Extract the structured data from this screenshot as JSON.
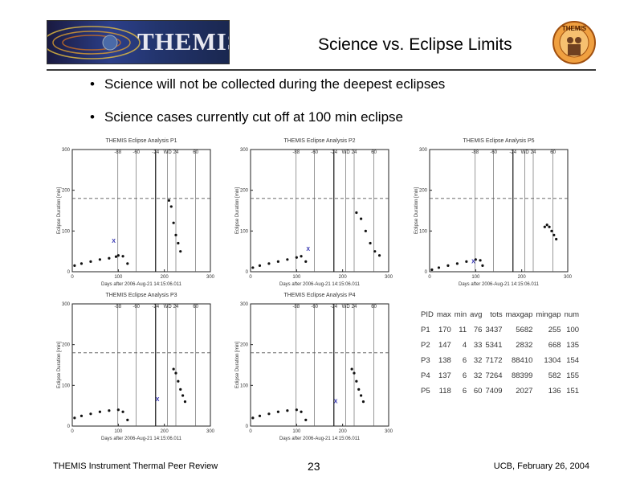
{
  "header": {
    "logo_text": "THEMIS",
    "title": "Science vs. Eclipse Limits",
    "emblem_text": "THEMIS"
  },
  "bullets": [
    "Science will not be collected during the deepest eclipses",
    "Science cases currently cut off at 100 min eclipse"
  ],
  "chart_data": [
    {
      "type": "scatter",
      "title": "THEMIS Eclipse Analysis P1",
      "ylabel": "Eclipse Duration [min]",
      "xlabel": "Days after 2006-Aug-21 14:15:06.011",
      "xlim": [
        0,
        300
      ],
      "ylim": [
        0,
        300
      ],
      "xticks": [
        0,
        100,
        200,
        300
      ],
      "yticks": [
        0,
        100,
        200,
        300
      ],
      "vlines": [
        99,
        139,
        181,
        207,
        225,
        268
      ],
      "vline_labels": [
        "-88",
        "-60",
        "-24",
        "WD",
        "24",
        "60"
      ],
      "threshold": 180,
      "x": [
        5,
        20,
        40,
        60,
        80,
        95,
        100,
        110,
        120,
        210,
        215,
        220,
        225,
        230,
        235
      ],
      "y": [
        15,
        20,
        25,
        30,
        33,
        37,
        40,
        38,
        20,
        175,
        160,
        120,
        90,
        70,
        50
      ],
      "markers": [
        {
          "x": 90,
          "y": 75,
          "label": "X"
        }
      ]
    },
    {
      "type": "scatter",
      "title": "THEMIS Eclipse Analysis P2",
      "ylabel": "Eclipse Duration [min]",
      "xlabel": "Days after 2006-Aug-21 14:15:06.011",
      "xlim": [
        0,
        300
      ],
      "ylim": [
        0,
        300
      ],
      "xticks": [
        0,
        100,
        200,
        300
      ],
      "yticks": [
        0,
        100,
        200,
        300
      ],
      "vlines": [
        99,
        139,
        181,
        207,
        225,
        268
      ],
      "vline_labels": [
        "-88",
        "-60",
        "-24",
        "WD",
        "24",
        "60"
      ],
      "threshold": 180,
      "x": [
        5,
        20,
        40,
        60,
        80,
        100,
        110,
        120,
        230,
        240,
        250,
        260,
        270,
        280
      ],
      "y": [
        10,
        15,
        20,
        25,
        30,
        35,
        38,
        25,
        145,
        130,
        100,
        70,
        50,
        40
      ],
      "markers": [
        {
          "x": 125,
          "y": 55,
          "label": "X"
        }
      ]
    },
    {
      "type": "scatter",
      "title": "THEMIS Eclipse Analysis P5",
      "ylabel": "Eclipse Duration [min]",
      "xlabel": "Days after 2006-Aug-21 14:15:06.011",
      "xlim": [
        0,
        300
      ],
      "ylim": [
        0,
        300
      ],
      "xticks": [
        0,
        100,
        200,
        300
      ],
      "yticks": [
        0,
        100,
        200,
        300
      ],
      "vlines": [
        99,
        139,
        181,
        207,
        225,
        268
      ],
      "vline_labels": [
        "-88",
        "-60",
        "-24",
        "WD",
        "24",
        "60"
      ],
      "threshold": 180,
      "x": [
        5,
        20,
        40,
        60,
        80,
        100,
        110,
        115,
        250,
        255,
        260,
        265,
        270,
        275
      ],
      "y": [
        5,
        10,
        15,
        20,
        25,
        30,
        28,
        15,
        110,
        115,
        110,
        100,
        90,
        80
      ],
      "markers": [
        {
          "x": 95,
          "y": 25,
          "label": "X"
        }
      ]
    },
    {
      "type": "scatter",
      "title": "THEMIS Eclipse Analysis P3",
      "ylabel": "Eclipse Duration [min]",
      "xlabel": "Days after 2006-Aug-21 14:15:06.011",
      "xlim": [
        0,
        300
      ],
      "ylim": [
        0,
        300
      ],
      "xticks": [
        0,
        100,
        200,
        300
      ],
      "yticks": [
        0,
        100,
        200,
        300
      ],
      "vlines": [
        99,
        139,
        181,
        207,
        225,
        268
      ],
      "vline_labels": [
        "-88",
        "-60",
        "-24",
        "WD",
        "24",
        "60"
      ],
      "threshold": 180,
      "x": [
        5,
        20,
        40,
        60,
        80,
        100,
        110,
        120,
        220,
        225,
        230,
        235,
        240,
        245
      ],
      "y": [
        20,
        25,
        30,
        35,
        38,
        40,
        35,
        15,
        140,
        130,
        110,
        90,
        75,
        60
      ],
      "markers": [
        {
          "x": 185,
          "y": 65,
          "label": "X"
        }
      ]
    },
    {
      "type": "scatter",
      "title": "THEMIS Eclipse Analysis P4",
      "ylabel": "Eclipse Duration [min]",
      "xlabel": "Days after 2006-Aug-21 14:15:06.011",
      "xlim": [
        0,
        300
      ],
      "ylim": [
        0,
        300
      ],
      "xticks": [
        0,
        100,
        200,
        300
      ],
      "yticks": [
        0,
        100,
        200,
        300
      ],
      "vlines": [
        99,
        139,
        181,
        207,
        225,
        268
      ],
      "vline_labels": [
        "-88",
        "-60",
        "-24",
        "WD",
        "24",
        "60"
      ],
      "threshold": 180,
      "x": [
        5,
        20,
        40,
        60,
        80,
        100,
        110,
        120,
        220,
        225,
        230,
        235,
        240,
        245
      ],
      "y": [
        20,
        25,
        30,
        35,
        38,
        40,
        35,
        15,
        140,
        130,
        110,
        90,
        75,
        60
      ],
      "markers": [
        {
          "x": 185,
          "y": 60,
          "label": "X"
        }
      ]
    }
  ],
  "stats": {
    "headers": [
      "PID",
      "max",
      "min",
      "avg",
      "tots",
      "maxgap",
      "mingap",
      "num"
    ],
    "rows": [
      [
        "P1",
        "170",
        "11",
        "76",
        "3437",
        "5682",
        "255",
        "100"
      ],
      [
        "P2",
        "147",
        "4",
        "33",
        "5341",
        "2832",
        "668",
        "135"
      ],
      [
        "P3",
        "138",
        "6",
        "32",
        "7172",
        "88410",
        "1304",
        "154"
      ],
      [
        "P4",
        "137",
        "6",
        "32",
        "7264",
        "88399",
        "582",
        "155"
      ],
      [
        "P5",
        "118",
        "6",
        "60",
        "7409",
        "2027",
        "136",
        "151"
      ]
    ]
  },
  "footer": {
    "left": "THEMIS Instrument Thermal Peer Review",
    "center": "23",
    "right": "UCB, February 26, 2004"
  }
}
